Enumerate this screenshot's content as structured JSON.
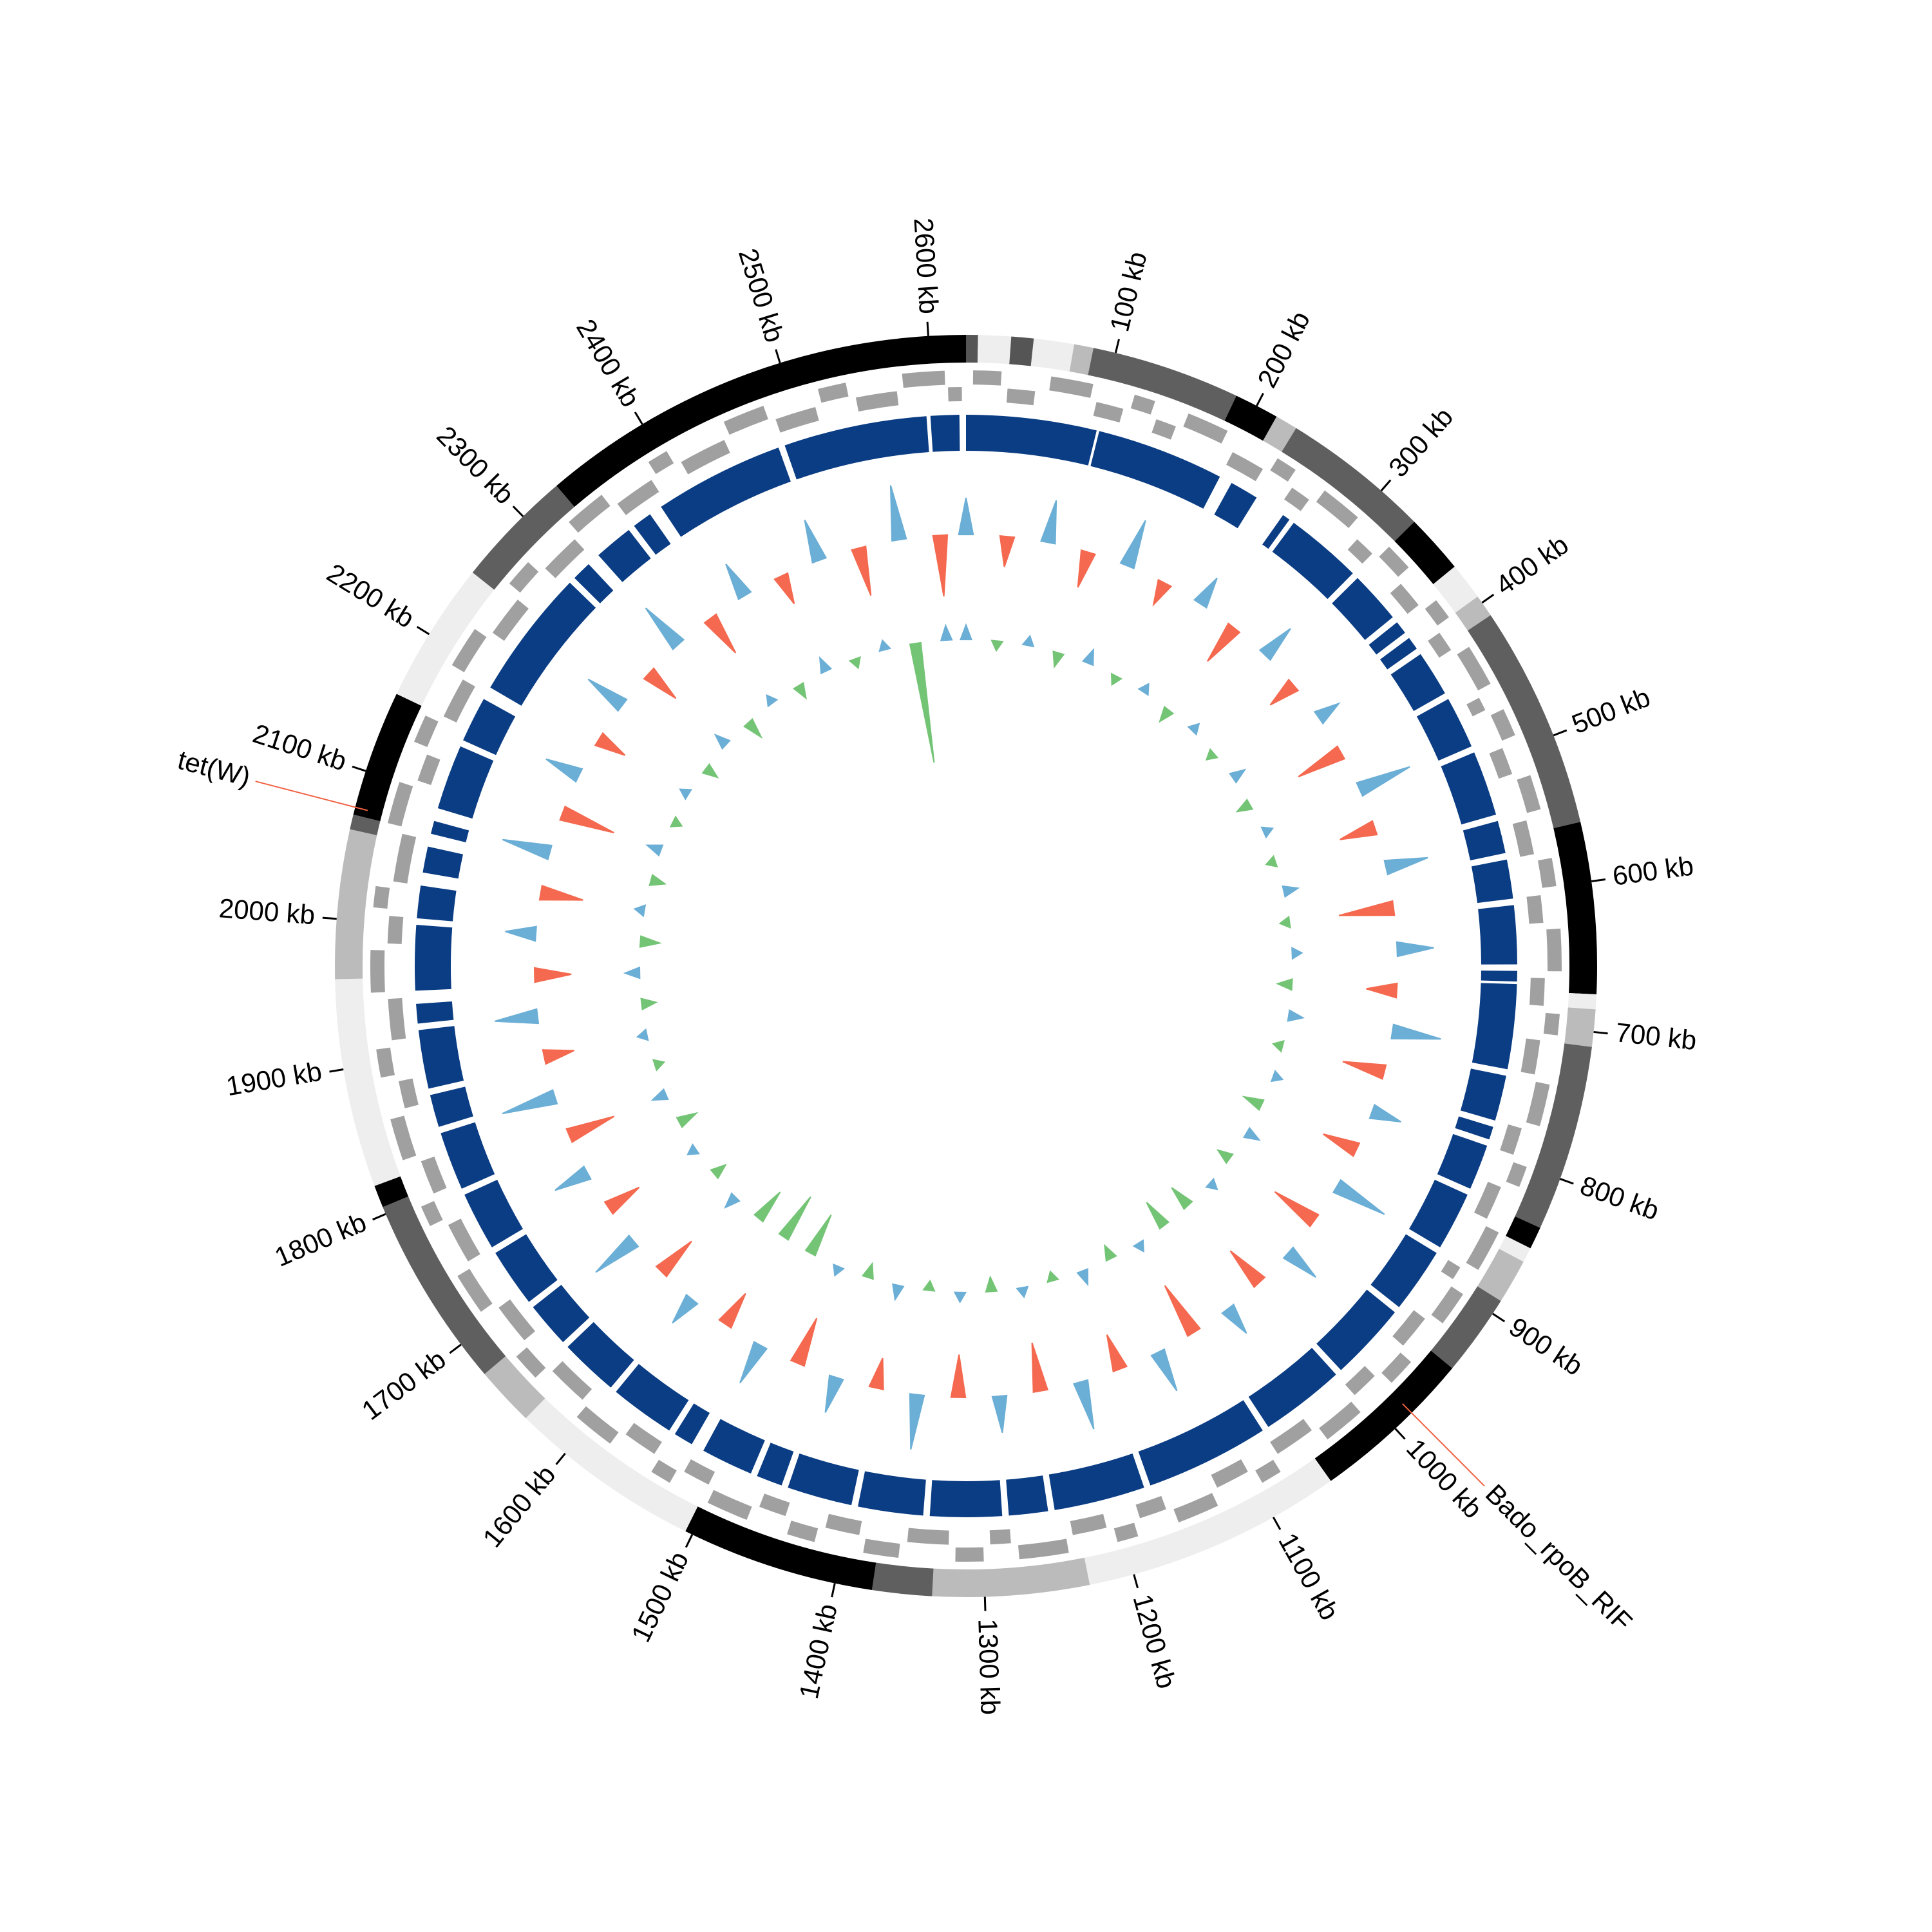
{
  "chart_data": {
    "type": "circos",
    "xlim": [
      0,
      2625
    ],
    "xticks": [
      {
        "value": 100,
        "label": "100 kb"
      },
      {
        "value": 200,
        "label": "200 kb"
      },
      {
        "value": 300,
        "label": "300 kb"
      },
      {
        "value": 400,
        "label": "400 kb"
      },
      {
        "value": 500,
        "label": "500 kb"
      },
      {
        "value": 600,
        "label": "600 kb"
      },
      {
        "value": 700,
        "label": "700 kb"
      },
      {
        "value": 800,
        "label": "800 kb"
      },
      {
        "value": 900,
        "label": "900 kb"
      },
      {
        "value": 1000,
        "label": "1000 kb"
      },
      {
        "value": 1100,
        "label": "1100 kb"
      },
      {
        "value": 1200,
        "label": "1200 kb"
      },
      {
        "value": 1300,
        "label": "1300 kb"
      },
      {
        "value": 1400,
        "label": "1400 kb"
      },
      {
        "value": 1500,
        "label": "1500 kb"
      },
      {
        "value": 1600,
        "label": "1600 kb"
      },
      {
        "value": 1700,
        "label": "1700 kb"
      },
      {
        "value": 1800,
        "label": "1800 kb"
      },
      {
        "value": 1900,
        "label": "1900 kb"
      },
      {
        "value": 2000,
        "label": "2000 kb"
      },
      {
        "value": 2100,
        "label": "2100 kb"
      },
      {
        "value": 2200,
        "label": "2200 kb"
      },
      {
        "value": 2300,
        "label": "2300 kb"
      },
      {
        "value": 2400,
        "label": "2400 kb"
      },
      {
        "value": 2500,
        "label": "2500 kb"
      },
      {
        "value": 2600,
        "label": "2600 kb"
      }
    ],
    "segments": [
      {
        "start": 0,
        "end": 8,
        "color": "#555555"
      },
      {
        "start": 8,
        "end": 30,
        "color": "#eeeeee"
      },
      {
        "start": 30,
        "end": 45,
        "color": "#555555"
      },
      {
        "start": 45,
        "end": 72,
        "color": "#eeeeee"
      },
      {
        "start": 72,
        "end": 85,
        "color": "#bbbbbb"
      },
      {
        "start": 85,
        "end": 185,
        "color": "#5f5f5f"
      },
      {
        "start": 185,
        "end": 215,
        "color": "#000000"
      },
      {
        "start": 215,
        "end": 230,
        "color": "#bbbbbb"
      },
      {
        "start": 230,
        "end": 330,
        "color": "#5f5f5f"
      },
      {
        "start": 330,
        "end": 370,
        "color": "#000000"
      },
      {
        "start": 370,
        "end": 395,
        "color": "#eeeeee"
      },
      {
        "start": 395,
        "end": 410,
        "color": "#bbbbbb"
      },
      {
        "start": 410,
        "end": 560,
        "color": "#5f5f5f"
      },
      {
        "start": 560,
        "end": 675,
        "color": "#000000"
      },
      {
        "start": 675,
        "end": 685,
        "color": "#eeeeee"
      },
      {
        "start": 685,
        "end": 710,
        "color": "#bbbbbb"
      },
      {
        "start": 710,
        "end": 835,
        "color": "#5f5f5f"
      },
      {
        "start": 835,
        "end": 850,
        "color": "#000000"
      },
      {
        "start": 850,
        "end": 860,
        "color": "#eeeeee"
      },
      {
        "start": 860,
        "end": 890,
        "color": "#bbbbbb"
      },
      {
        "start": 890,
        "end": 945,
        "color": "#5f5f5f"
      },
      {
        "start": 945,
        "end": 1055,
        "color": "#000000"
      },
      {
        "start": 1055,
        "end": 1230,
        "color": "#eeeeee"
      },
      {
        "start": 1230,
        "end": 1335,
        "color": "#bbbbbb"
      },
      {
        "start": 1335,
        "end": 1375,
        "color": "#5f5f5f"
      },
      {
        "start": 1375,
        "end": 1505,
        "color": "#000000"
      },
      {
        "start": 1505,
        "end": 1635,
        "color": "#eeeeee"
      },
      {
        "start": 1635,
        "end": 1675,
        "color": "#bbbbbb"
      },
      {
        "start": 1675,
        "end": 1805,
        "color": "#5f5f5f"
      },
      {
        "start": 1805,
        "end": 1820,
        "color": "#000000"
      },
      {
        "start": 1820,
        "end": 1960,
        "color": "#eeeeee"
      },
      {
        "start": 1960,
        "end": 2060,
        "color": "#bbbbbb"
      },
      {
        "start": 2060,
        "end": 2070,
        "color": "#5f5f5f"
      },
      {
        "start": 2070,
        "end": 2155,
        "color": "#000000"
      },
      {
        "start": 2155,
        "end": 2250,
        "color": "#eeeeee"
      },
      {
        "start": 2250,
        "end": 2330,
        "color": "#5f5f5f"
      },
      {
        "start": 2330,
        "end": 2625,
        "color": "#000000"
      }
    ],
    "genes": [
      {
        "color": "#a0a0a0",
        "features": [
          [
            5,
            25
          ],
          [
            60,
            90
          ],
          [
            120,
            135
          ],
          [
            160,
            190
          ],
          [
            230,
            245
          ],
          [
            270,
            300
          ],
          [
            330,
            350
          ],
          [
            380,
            395
          ],
          [
            420,
            450
          ],
          [
            470,
            490
          ],
          [
            520,
            545
          ],
          [
            580,
            600
          ],
          [
            630,
            660
          ],
          [
            690,
            705
          ],
          [
            740,
            770
          ],
          [
            800,
            815
          ],
          [
            850,
            880
          ],
          [
            900,
            925
          ],
          [
            960,
            980
          ],
          [
            1010,
            1040
          ],
          [
            1080,
            1095
          ],
          [
            1130,
            1160
          ],
          [
            1190,
            1205
          ],
          [
            1240,
            1275
          ],
          [
            1300,
            1320
          ],
          [
            1360,
            1385
          ],
          [
            1420,
            1440
          ],
          [
            1470,
            1500
          ],
          [
            1530,
            1545
          ],
          [
            1580,
            1610
          ],
          [
            1650,
            1670
          ],
          [
            1710,
            1740
          ],
          [
            1780,
            1795
          ],
          [
            1830,
            1860
          ],
          [
            1890,
            1910
          ],
          [
            1950,
            1980
          ],
          [
            2010,
            2025
          ],
          [
            2070,
            2100
          ],
          [
            2130,
            2150
          ],
          [
            2190,
            2220
          ],
          [
            2260,
            2280
          ],
          [
            2320,
            2350
          ],
          [
            2390,
            2405
          ],
          [
            2450,
            2480
          ],
          [
            2520,
            2540
          ],
          [
            2580,
            2610
          ]
        ]
      },
      {
        "color": "#a0a0a0",
        "features": [
          [
            30,
            50
          ],
          [
            95,
            115
          ],
          [
            140,
            155
          ],
          [
            200,
            225
          ],
          [
            250,
            265
          ],
          [
            310,
            325
          ],
          [
            355,
            375
          ],
          [
            400,
            415
          ],
          [
            455,
            465
          ],
          [
            495,
            515
          ],
          [
            550,
            575
          ],
          [
            605,
            625
          ],
          [
            665,
            685
          ],
          [
            710,
            735
          ],
          [
            775,
            795
          ],
          [
            820,
            845
          ],
          [
            885,
            895
          ],
          [
            930,
            955
          ],
          [
            985,
            1005
          ],
          [
            1045,
            1075
          ],
          [
            1100,
            1125
          ],
          [
            1165,
            1185
          ],
          [
            1210,
            1235
          ],
          [
            1280,
            1295
          ],
          [
            1325,
            1355
          ],
          [
            1390,
            1415
          ],
          [
            1445,
            1465
          ],
          [
            1505,
            1525
          ],
          [
            1550,
            1575
          ],
          [
            1615,
            1645
          ],
          [
            1675,
            1705
          ],
          [
            1745,
            1775
          ],
          [
            1800,
            1825
          ],
          [
            1865,
            1885
          ],
          [
            1915,
            1945
          ],
          [
            1985,
            2005
          ],
          [
            2030,
            2065
          ],
          [
            2105,
            2125
          ],
          [
            2155,
            2185
          ],
          [
            2225,
            2255
          ],
          [
            2285,
            2315
          ],
          [
            2355,
            2385
          ],
          [
            2410,
            2445
          ],
          [
            2485,
            2515
          ],
          [
            2545,
            2575
          ],
          [
            2612,
            2622
          ]
        ]
      }
    ],
    "blocks": {
      "color": "#0b3d84",
      "intervals": [
        [
          0,
          100
        ],
        [
          102,
          200
        ],
        [
          210,
          232
        ],
        [
          256,
          262
        ],
        [
          266,
          325
        ],
        [
          330,
          370
        ],
        [
          375,
          385
        ],
        [
          390,
          400
        ],
        [
          405,
          440
        ],
        [
          445,
          485
        ],
        [
          490,
          540
        ],
        [
          545,
          570
        ],
        [
          575,
          605
        ],
        [
          610,
          655
        ],
        [
          660,
          668
        ],
        [
          670,
          735
        ],
        [
          740,
          775
        ],
        [
          780,
          790
        ],
        [
          795,
          830
        ],
        [
          835,
          880
        ],
        [
          885,
          935
        ],
        [
          940,
          1000
        ],
        [
          1005,
          1070
        ],
        [
          1075,
          1170
        ],
        [
          1175,
          1245
        ],
        [
          1250,
          1280
        ],
        [
          1285,
          1340
        ],
        [
          1345,
          1395
        ],
        [
          1400,
          1450
        ],
        [
          1455,
          1475
        ],
        [
          1480,
          1520
        ],
        [
          1530,
          1545
        ],
        [
          1550,
          1600
        ],
        [
          1605,
          1650
        ],
        [
          1655,
          1690
        ],
        [
          1695,
          1740
        ],
        [
          1745,
          1790
        ],
        [
          1795,
          1840
        ],
        [
          1845,
          1870
        ],
        [
          1875,
          1920
        ],
        [
          1925,
          1940
        ],
        [
          1950,
          2000
        ],
        [
          2005,
          2030
        ],
        [
          2040,
          2060
        ],
        [
          2070,
          2080
        ],
        [
          2090,
          2140
        ],
        [
          2145,
          2180
        ],
        [
          2190,
          2290
        ],
        [
          2295,
          2310
        ],
        [
          2320,
          2350
        ],
        [
          2355,
          2370
        ],
        [
          2380,
          2480
        ],
        [
          2485,
          2595
        ],
        [
          2598,
          2620
        ]
      ]
    },
    "tracks": {
      "x": [
        0,
        40,
        80,
        120,
        160,
        200,
        240,
        280,
        320,
        360,
        400,
        440,
        480,
        520,
        560,
        600,
        640,
        680,
        720,
        760,
        800,
        840,
        880,
        920,
        960,
        1000,
        1040,
        1080,
        1120,
        1160,
        1200,
        1240,
        1280,
        1320,
        1360,
        1400,
        1440,
        1480,
        1520,
        1560,
        1600,
        1640,
        1680,
        1720,
        1760,
        1800,
        1840,
        1880,
        1920,
        1960,
        2000,
        2040,
        2080,
        2120,
        2160,
        2200,
        2240,
        2280,
        2320,
        2360,
        2400,
        2440,
        2480,
        2520,
        2560,
        2600
      ],
      "ylim": [
        -1,
        1
      ],
      "series": [
        {
          "positive_color": "#6baed6",
          "negative_color": "#f4694f",
          "values": [
            0.6,
            -0.5,
            0.7,
            -0.6,
            0.8,
            -0.4,
            0.5,
            -0.7,
            0.6,
            -0.5,
            0.4,
            -0.8,
            0.9,
            -0.6,
            0.7,
            -0.9,
            0.6,
            -0.5,
            0.8,
            -0.7,
            0.5,
            -0.6,
            0.9,
            -0.8,
            0.6,
            -0.7,
            0.5,
            -0.9,
            0.7,
            -0.6,
            0.8,
            -0.8,
            0.6,
            -0.7,
            0.9,
            -0.5,
            0.6,
            -0.8,
            0.7,
            -0.6,
            0.5,
            -0.7,
            0.8,
            -0.6,
            0.6,
            -0.8,
            0.9,
            -0.5,
            0.7,
            -0.6,
            0.5,
            -0.7,
            0.8,
            -0.9,
            0.6,
            -0.5,
            0.7,
            -0.6,
            0.8,
            -0.7,
            0.6,
            -0.5,
            0.7,
            -0.8,
            0.9,
            -1.0
          ]
        },
        {
          "positive_color": "#6baed6",
          "negative_color": "#74c476",
          "values": [
            0.3,
            -0.2,
            0.2,
            -0.3,
            0.3,
            -0.2,
            0.2,
            -0.3,
            0.2,
            -0.2,
            0.3,
            -0.3,
            0.2,
            -0.2,
            0.3,
            -0.2,
            0.2,
            -0.3,
            0.3,
            -0.2,
            0.2,
            -0.4,
            0.3,
            -0.3,
            0.2,
            -0.5,
            -0.6,
            0.2,
            -0.3,
            0.3,
            -0.2,
            0.2,
            -0.3,
            0.2,
            -0.2,
            0.3,
            -0.3,
            0.2,
            -0.9,
            -1.0,
            -0.7,
            0.3,
            -0.3,
            0.2,
            -0.4,
            0.3,
            -0.2,
            0.2,
            -0.3,
            0.3,
            -0.4,
            0.2,
            -0.3,
            0.3,
            -0.2,
            0.2,
            -0.3,
            0.3,
            -0.4,
            0.2,
            -0.3,
            0.3,
            -0.2,
            0.2,
            -2.5,
            0.3
          ]
        }
      ]
    },
    "annotations": [
      {
        "label": "tet(W)",
        "position": 2075
      },
      {
        "label": "Bado_rpoB_RIF",
        "position": 985
      }
    ],
    "annotation_color": "#2a6ebb",
    "annotation_line_color": "#f06040"
  }
}
